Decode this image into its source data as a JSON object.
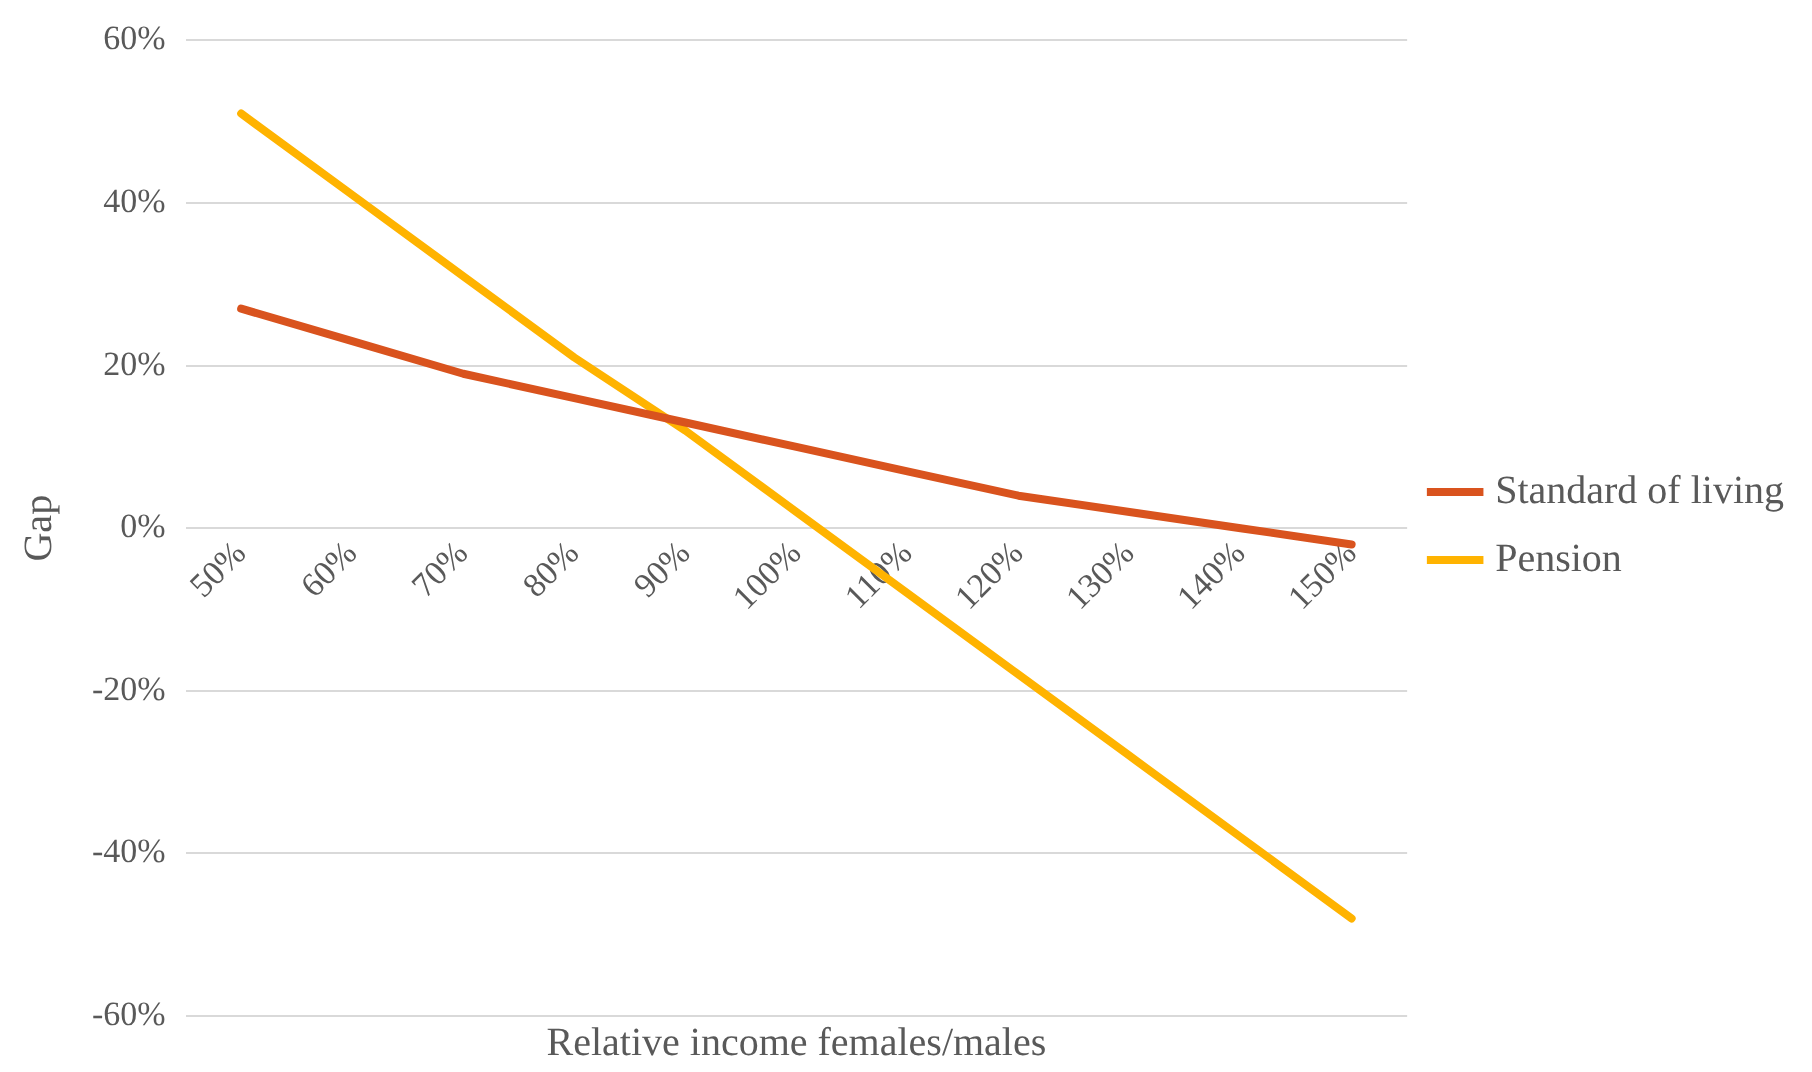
{
  "chart_data": {
    "type": "line",
    "xlabel": "Relative income females/males",
    "ylabel": "Gap",
    "categories": [
      "50%",
      "60%",
      "70%",
      "80%",
      "90%",
      "100%",
      "110%",
      "120%",
      "130%",
      "140%",
      "150%"
    ],
    "series": [
      {
        "name": "Standard of living",
        "color": "#d9531e",
        "values": [
          27,
          23,
          19,
          16,
          13,
          10,
          7,
          4,
          2,
          0,
          -2
        ]
      },
      {
        "name": "Pension",
        "color": "#ffb300",
        "values": [
          51,
          41,
          31,
          21,
          12,
          2,
          -8,
          -18,
          -28,
          -38,
          -48
        ]
      }
    ],
    "ylim": [
      -60,
      60
    ],
    "yticks": [
      {
        "value": -60,
        "label": "-60%"
      },
      {
        "value": -40,
        "label": "-40%"
      },
      {
        "value": -20,
        "label": "-20%"
      },
      {
        "value": 0,
        "label": "0%"
      },
      {
        "value": 20,
        "label": "20%"
      },
      {
        "value": 40,
        "label": "40%"
      },
      {
        "value": 60,
        "label": "60%"
      }
    ],
    "grid": "y",
    "legend": "right",
    "marker": "none",
    "line_style": "solid"
  }
}
